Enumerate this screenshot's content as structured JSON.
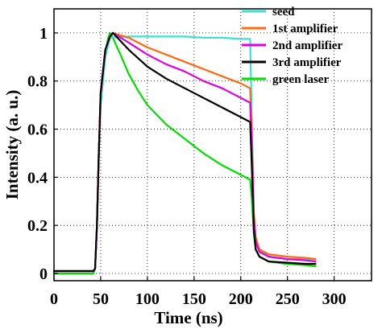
{
  "chart_data": {
    "type": "line",
    "title": "",
    "xlabel": "Time (ns)",
    "ylabel": "Intensity (a. u.)",
    "xlim": [
      0,
      340
    ],
    "ylim": [
      -0.03,
      1.1
    ],
    "xticks": [
      "0",
      "50",
      "100",
      "150",
      "200",
      "250",
      "300"
    ],
    "yticks": [
      "0",
      "0.2",
      "0.4",
      "0.6",
      "0.8",
      "1"
    ],
    "grid": true,
    "grid_style": "dotted",
    "legend_position": "top-right",
    "series": [
      {
        "name": "seed",
        "color": "#40e0d0",
        "x": [
          0,
          20,
          42,
          44,
          46,
          48,
          50,
          55,
          60,
          80,
          100,
          120,
          140,
          160,
          180,
          200,
          210,
          212,
          214,
          216,
          220,
          230,
          250,
          270,
          280
        ],
        "y": [
          0.01,
          0.01,
          0.01,
          0.02,
          0.2,
          0.5,
          0.7,
          0.9,
          0.98,
          0.985,
          0.985,
          0.985,
          0.985,
          0.98,
          0.98,
          0.975,
          0.975,
          0.6,
          0.25,
          0.15,
          0.1,
          0.07,
          0.06,
          0.06,
          0.06
        ]
      },
      {
        "name": "1st amplifier",
        "color": "#ff6a13",
        "x": [
          0,
          20,
          42,
          44,
          46,
          48,
          50,
          55,
          60,
          63,
          80,
          100,
          120,
          140,
          160,
          180,
          200,
          210,
          212,
          214,
          216,
          220,
          230,
          250,
          270,
          280
        ],
        "y": [
          0.01,
          0.01,
          0.01,
          0.02,
          0.2,
          0.5,
          0.75,
          0.93,
          0.985,
          1.0,
          0.98,
          0.94,
          0.91,
          0.88,
          0.85,
          0.82,
          0.79,
          0.77,
          0.55,
          0.25,
          0.15,
          0.1,
          0.08,
          0.07,
          0.065,
          0.06
        ]
      },
      {
        "name": "2nd amplifier",
        "color": "#e000e0",
        "x": [
          0,
          20,
          42,
          44,
          46,
          48,
          50,
          55,
          60,
          63,
          80,
          100,
          120,
          140,
          160,
          180,
          200,
          210,
          212,
          214,
          216,
          220,
          230,
          250,
          270,
          280
        ],
        "y": [
          0.01,
          0.01,
          0.01,
          0.02,
          0.2,
          0.5,
          0.75,
          0.93,
          0.985,
          1.0,
          0.96,
          0.91,
          0.87,
          0.84,
          0.8,
          0.77,
          0.73,
          0.71,
          0.5,
          0.22,
          0.13,
          0.09,
          0.07,
          0.06,
          0.055,
          0.05
        ]
      },
      {
        "name": "3rd amplifier",
        "color": "#000000",
        "x": [
          0,
          20,
          42,
          44,
          46,
          48,
          50,
          55,
          60,
          63,
          80,
          100,
          120,
          140,
          160,
          180,
          200,
          210,
          212,
          214,
          216,
          220,
          230,
          250,
          270,
          280
        ],
        "y": [
          0.01,
          0.01,
          0.01,
          0.02,
          0.2,
          0.5,
          0.75,
          0.93,
          0.985,
          1.0,
          0.93,
          0.86,
          0.81,
          0.77,
          0.73,
          0.69,
          0.65,
          0.63,
          0.42,
          0.18,
          0.1,
          0.07,
          0.05,
          0.045,
          0.04,
          0.04
        ]
      },
      {
        "name": "green laser",
        "color": "#00e000",
        "x": [
          0,
          20,
          42,
          44,
          46,
          48,
          50,
          55,
          58,
          60,
          63,
          70,
          80,
          90,
          100,
          110,
          120,
          140,
          160,
          180,
          200,
          210,
          212,
          214,
          216,
          220,
          230,
          250,
          270,
          280
        ],
        "y": [
          0.0,
          0.0,
          0.0,
          0.02,
          0.2,
          0.5,
          0.72,
          0.92,
          0.98,
          1.0,
          0.98,
          0.92,
          0.83,
          0.76,
          0.7,
          0.66,
          0.62,
          0.56,
          0.5,
          0.45,
          0.41,
          0.39,
          0.3,
          0.16,
          0.1,
          0.07,
          0.05,
          0.04,
          0.035,
          0.03
        ]
      }
    ]
  }
}
